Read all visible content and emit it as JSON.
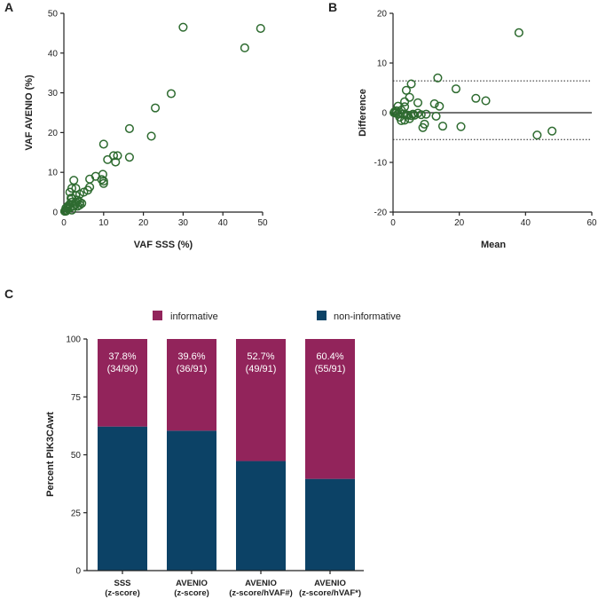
{
  "colors": {
    "scatter": "#2e6b30",
    "informative": "#92245b",
    "non_informative": "#0c4266",
    "axis": "#222222"
  },
  "chart_data": [
    {
      "panel": "A",
      "type": "scatter",
      "xlabel": "VAF SSS (%)",
      "ylabel": "VAF AVENIO (%)",
      "xlim": [
        0,
        50
      ],
      "ylim": [
        0,
        50
      ],
      "xticks": [
        0,
        10,
        20,
        30,
        40,
        50
      ],
      "yticks": [
        0,
        10,
        20,
        30,
        40,
        50
      ],
      "points": [
        [
          30,
          46.5
        ],
        [
          49.5,
          46.2
        ],
        [
          45.5,
          41.3
        ],
        [
          27,
          29.8
        ],
        [
          23,
          26.2
        ],
        [
          16.5,
          21
        ],
        [
          22,
          19.1
        ],
        [
          10,
          17.1
        ],
        [
          16.5,
          13.8
        ],
        [
          13.5,
          14.2
        ],
        [
          12.5,
          14.2
        ],
        [
          11,
          13.2
        ],
        [
          13,
          12.6
        ],
        [
          9.8,
          9.5
        ],
        [
          8,
          9
        ],
        [
          9.5,
          8.2
        ],
        [
          6.5,
          8.3
        ],
        [
          10,
          7.2
        ],
        [
          10,
          7.8
        ],
        [
          2.5,
          8
        ],
        [
          6.5,
          6.3
        ],
        [
          6,
          5.5
        ],
        [
          5,
          5
        ],
        [
          4,
          4.5
        ],
        [
          2,
          6
        ],
        [
          3,
          6
        ],
        [
          1.5,
          5
        ],
        [
          3,
          4.2
        ],
        [
          2,
          3.5
        ],
        [
          3.5,
          3
        ],
        [
          3,
          2.5
        ],
        [
          2,
          2.5
        ],
        [
          1.5,
          2
        ],
        [
          1,
          1.5
        ],
        [
          0.5,
          1
        ],
        [
          0.5,
          0.5
        ],
        [
          1,
          0.8
        ],
        [
          2.5,
          1.5
        ],
        [
          3,
          2
        ],
        [
          4,
          2.5
        ],
        [
          1.8,
          3.5
        ],
        [
          0.3,
          0.3
        ],
        [
          0.2,
          0.2
        ],
        [
          0.5,
          0.2
        ],
        [
          1,
          1.2
        ],
        [
          1.5,
          1
        ],
        [
          4,
          1.8
        ],
        [
          4.5,
          2.2
        ],
        [
          3.5,
          1.5
        ],
        [
          2,
          0.5
        ]
      ]
    },
    {
      "panel": "B",
      "type": "scatter",
      "xlabel": "Mean",
      "ylabel": "Difference",
      "xlim": [
        0,
        60
      ],
      "ylim": [
        -20,
        20
      ],
      "xticks": [
        0,
        20,
        40,
        60
      ],
      "yticks": [
        -20,
        -10,
        0,
        10,
        20
      ],
      "hlines": [
        6.4,
        -5.4
      ],
      "points": [
        [
          38,
          16.1
        ],
        [
          13.5,
          7
        ],
        [
          5.5,
          5.8
        ],
        [
          19,
          4.8
        ],
        [
          4,
          4.5
        ],
        [
          5,
          3.1
        ],
        [
          3.5,
          2.2
        ],
        [
          25,
          2.9
        ],
        [
          28,
          2.4
        ],
        [
          7.5,
          2
        ],
        [
          12.5,
          1.8
        ],
        [
          1.5,
          1.3
        ],
        [
          3.5,
          1.2
        ],
        [
          14,
          1.3
        ],
        [
          2.5,
          0.5
        ],
        [
          1,
          0.4
        ],
        [
          0.5,
          0.2
        ],
        [
          0.3,
          0
        ],
        [
          0.8,
          -0.1
        ],
        [
          1.5,
          -0.2
        ],
        [
          3,
          -0.3
        ],
        [
          4.5,
          -0.5
        ],
        [
          5.5,
          -0.6
        ],
        [
          6,
          -0.3
        ],
        [
          7.5,
          -0.1
        ],
        [
          8.5,
          -0.4
        ],
        [
          10,
          -0.3
        ],
        [
          13,
          -0.7
        ],
        [
          2,
          -0.9
        ],
        [
          2.5,
          -1.6
        ],
        [
          3.5,
          -1.5
        ],
        [
          5,
          -1.2
        ],
        [
          6.5,
          -0.5
        ],
        [
          9.5,
          -2.3
        ],
        [
          9,
          -3
        ],
        [
          15,
          -2.7
        ],
        [
          20.5,
          -2.8
        ],
        [
          43.5,
          -4.5
        ],
        [
          48,
          -3.7
        ],
        [
          4,
          -0.4
        ],
        [
          1.5,
          -0.3
        ],
        [
          2,
          0.1
        ]
      ]
    },
    {
      "panel": "C",
      "type": "bar",
      "stacked": true,
      "ylabel": "Percent PIK3CAwt",
      "ylim": [
        0,
        100
      ],
      "yticks": [
        0,
        25,
        50,
        75,
        100
      ],
      "legend": [
        "informative",
        "non-informative"
      ],
      "categories": [
        [
          "SSS",
          "(z-score)"
        ],
        [
          "AVENIO",
          "(z-score)"
        ],
        [
          "AVENIO",
          "(z-score/hVAF#)"
        ],
        [
          "AVENIO",
          "(z-score/hVAF*)"
        ]
      ],
      "series": [
        {
          "name": "non-informative",
          "values": [
            62.2,
            60.4,
            47.3,
            39.6
          ]
        },
        {
          "name": "informative",
          "values": [
            37.8,
            39.6,
            52.7,
            60.4
          ]
        }
      ],
      "bar_labels": [
        [
          "37.8%",
          "(34/90)"
        ],
        [
          "39.6%",
          "(36/91)"
        ],
        [
          "52.7%",
          "(49/91)"
        ],
        [
          "60.4%",
          "(55/91)"
        ]
      ]
    }
  ]
}
